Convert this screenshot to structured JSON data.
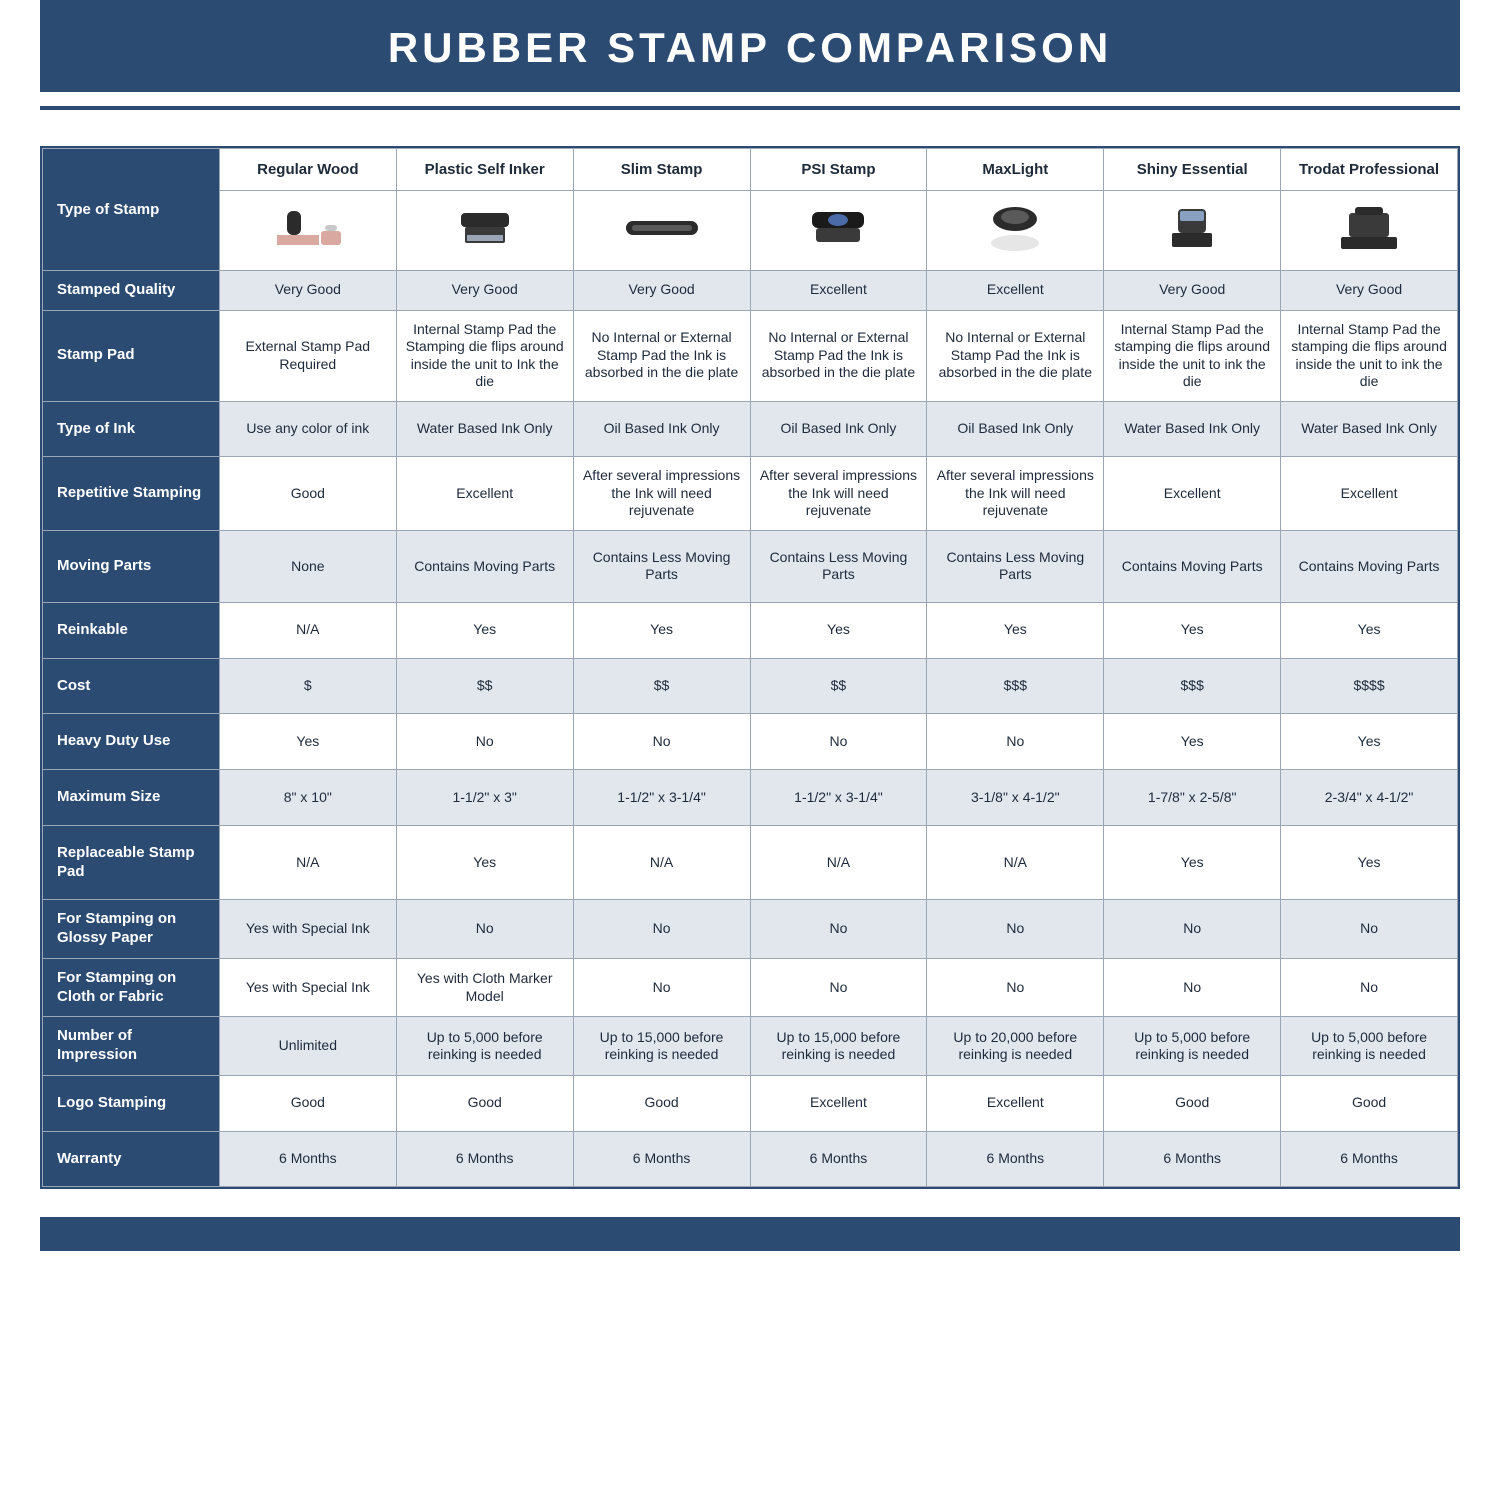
{
  "colors": {
    "navy": "#2b4b73",
    "alt_row": "#e2e7ee",
    "border": "#9aa6b5",
    "text": "#1e2a3a",
    "white": "#ffffff"
  },
  "title": "RUBBER STAMP COMPARISON",
  "first_header": "Type of Stamp",
  "columns": [
    "Regular Wood",
    "Plastic Self Inker",
    "Slim Stamp",
    "PSI Stamp",
    "MaxLight",
    "Shiny Essential",
    "Trodat Professional"
  ],
  "rows": [
    {
      "label": "Stamped Quality",
      "alt": true,
      "cells": [
        "Very Good",
        "Very Good",
        "Very Good",
        "Excellent",
        "Excellent",
        "Very Good",
        "Very Good"
      ]
    },
    {
      "label": "Stamp Pad",
      "alt": false,
      "cells": [
        "External Stamp Pad Required",
        "Internal Stamp Pad the Stamping die flips around inside the unit to Ink the die",
        "No Internal or External Stamp Pad the Ink is absorbed in the die plate",
        "No Internal or External Stamp Pad the Ink is absorbed in the die plate",
        "No Internal or External Stamp Pad the Ink is absorbed in the die plate",
        "Internal Stamp Pad the stamping die flips around inside the unit to ink the die",
        "Internal Stamp Pad the stamping die flips around inside the unit to ink the die"
      ]
    },
    {
      "label": "Type of Ink",
      "alt": true,
      "tall": true,
      "cells": [
        "Use any color of ink",
        "Water Based Ink Only",
        "Oil Based Ink Only",
        "Oil Based Ink Only",
        "Oil Based Ink Only",
        "Water Based Ink Only",
        "Water Based Ink Only"
      ]
    },
    {
      "label": "Repetitive Stamping",
      "alt": false,
      "cells": [
        "Good",
        "Excellent",
        "After several impressions the Ink will need rejuvenate",
        "After several impressions the Ink will need rejuvenate",
        "After several impressions the Ink will need rejuvenate",
        "Excellent",
        "Excellent"
      ]
    },
    {
      "label": "Moving Parts",
      "alt": true,
      "tall": true,
      "cells": [
        "None",
        "Contains Moving Parts",
        "Contains Less Moving Parts",
        "Contains Less Moving Parts",
        "Contains Less Moving Parts",
        "Contains Moving Parts",
        "Contains Moving Parts"
      ]
    },
    {
      "label": "Reinkable",
      "alt": false,
      "tall": true,
      "cells": [
        "N/A",
        "Yes",
        "Yes",
        "Yes",
        "Yes",
        "Yes",
        "Yes"
      ]
    },
    {
      "label": "Cost",
      "alt": true,
      "tall": true,
      "cells": [
        "$",
        "$$",
        "$$",
        "$$",
        "$$$",
        "$$$",
        "$$$$"
      ]
    },
    {
      "label": "Heavy Duty Use",
      "alt": false,
      "tall": true,
      "cells": [
        "Yes",
        "No",
        "No",
        "No",
        "No",
        "Yes",
        "Yes"
      ]
    },
    {
      "label": "Maximum Size",
      "alt": true,
      "tall": true,
      "cells": [
        "8\" x 10\"",
        "1-1/2\" x 3\"",
        "1-1/2\" x 3-1/4\"",
        "1-1/2\" x 3-1/4\"",
        "3-1/8\" x 4-1/2\"",
        "1-7/8\" x 2-5/8\"",
        "2-3/4\" x 4-1/2\""
      ]
    },
    {
      "label": "Replaceable Stamp Pad",
      "alt": false,
      "tall": true,
      "cells": [
        "N/A",
        "Yes",
        "N/A",
        "N/A",
        "N/A",
        "Yes",
        "Yes"
      ]
    },
    {
      "label": "For Stamping on Glossy Paper",
      "alt": true,
      "cells": [
        "Yes with Special Ink",
        "No",
        "No",
        "No",
        "No",
        "No",
        "No"
      ]
    },
    {
      "label": "For Stamping on Cloth or Fabric",
      "alt": false,
      "cells": [
        "Yes with Special Ink",
        "Yes with Cloth Marker Model",
        "No",
        "No",
        "No",
        "No",
        "No"
      ]
    },
    {
      "label": "Number of Impression",
      "alt": true,
      "cells": [
        "Unlimited",
        "Up to 5,000 before reinking is needed",
        "Up to 15,000 before reinking is needed",
        "Up to 15,000 before reinking is needed",
        "Up to 20,000 before reinking is needed",
        "Up to 5,000 before reinking is needed",
        "Up to 5,000 before reinking is needed"
      ]
    },
    {
      "label": "Logo Stamping",
      "alt": false,
      "tall": true,
      "cells": [
        "Good",
        "Good",
        "Good",
        "Excellent",
        "Excellent",
        "Good",
        "Good"
      ]
    },
    {
      "label": "Warranty",
      "alt": true,
      "tall": true,
      "cells": [
        "6 Months",
        "6 Months",
        "6 Months",
        "6 Months",
        "6 Months",
        "6 Months",
        "6 Months"
      ]
    }
  ]
}
